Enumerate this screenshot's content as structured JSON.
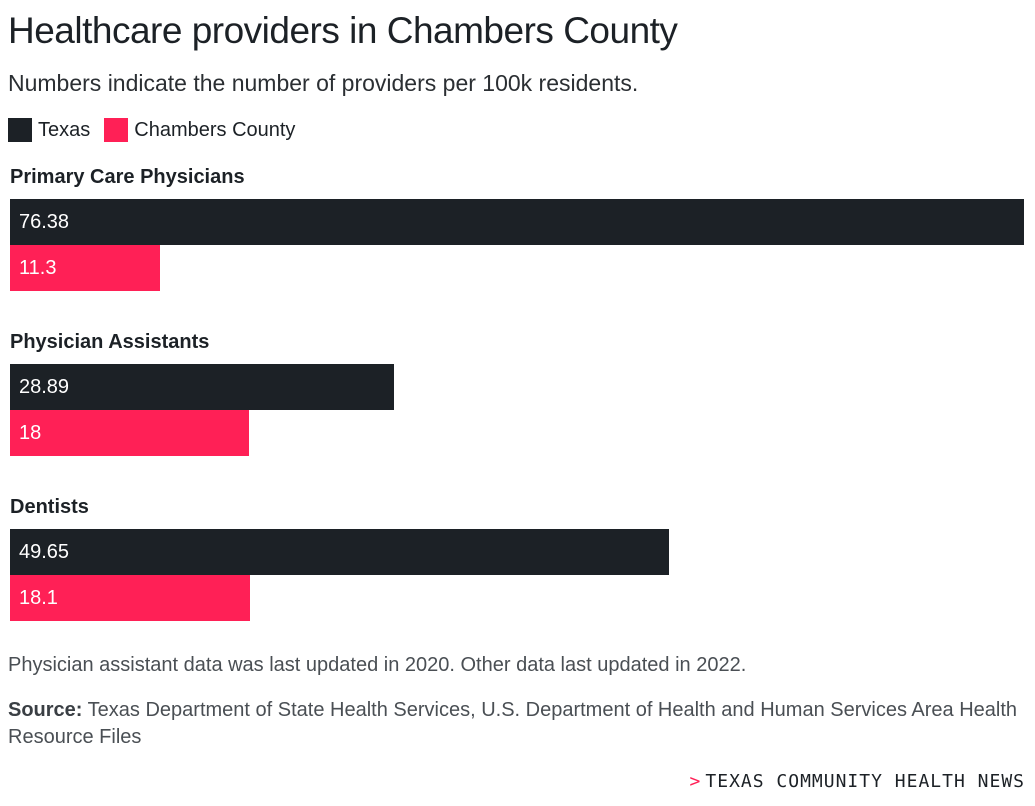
{
  "title": "Healthcare providers in Chambers County",
  "subtitle": "Numbers indicate the number of providers per 100k residents.",
  "note": "Physician assistant data was last updated in 2020. Other data last updated in 2022.",
  "source": {
    "label": "Source:",
    "text": "Texas Department of State Health Services, U.S. Department of Health and Human Services Area Health Resource Files"
  },
  "brand": {
    "arrow": ">",
    "name": "TEXAS COMMUNITY HEALTH NEWS"
  },
  "colors": {
    "texas": "#1c2126",
    "county": "#ff2056"
  },
  "chart_data": {
    "type": "bar",
    "orientation": "horizontal",
    "categories": [
      "Primary Care Physicians",
      "Physician Assistants",
      "Dentists"
    ],
    "series": [
      {
        "name": "Texas",
        "values": [
          76.38,
          28.89,
          49.65
        ],
        "labels": [
          "76.38",
          "28.89",
          "49.65"
        ]
      },
      {
        "name": "Chambers County",
        "values": [
          11.3,
          18,
          18.1
        ],
        "labels": [
          "11.3",
          "18",
          "18.1"
        ]
      }
    ],
    "xlim": [
      0,
      76.38
    ],
    "grid": false,
    "legend": "top-left"
  }
}
